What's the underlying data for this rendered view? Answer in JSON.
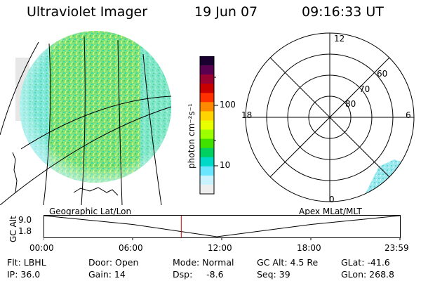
{
  "header": {
    "title": "Ultraviolet Imager",
    "date": "19 Jun 07",
    "time": "09:16:33 UT"
  },
  "colorbar": {
    "label": "photon cm⁻²s⁻¹",
    "ticks": [
      "100",
      "10"
    ],
    "scale": "log",
    "colors": [
      "#1a0030",
      "#5a0050",
      "#9a0030",
      "#c80000",
      "#ff3000",
      "#ff8a00",
      "#ffd400",
      "#e8ff00",
      "#9bff00",
      "#40e000",
      "#00d060",
      "#00d8c8",
      "#6be6ff",
      "#c9f2ff",
      "#eeeeee"
    ]
  },
  "polar": {
    "labels_mlt": [
      "12",
      "18",
      "6",
      "0"
    ],
    "labels_mlat": [
      "60",
      "70",
      "80"
    ]
  },
  "timeline": {
    "left_label": "Geographic Lat/Lon",
    "right_label": "Apex MLat/MLT",
    "axis_label": "GC Alt",
    "y_ticks": [
      "9.0",
      "1.8"
    ],
    "x_ticks": [
      "00:00",
      "06:00",
      "12:00",
      "18:00",
      "23:59"
    ],
    "marker_color": "#cc0000"
  },
  "status": {
    "flt": "Flt: LBHL",
    "ip": "IP: 36.0",
    "door": "Door: Open",
    "gain": "Gain: 14",
    "mode": "Mode: Normal",
    "dsp": "Dsp:     -8.6",
    "gc_alt": "GC Alt: 4.5 Re",
    "seq": "Seq: 39",
    "glat": "GLat: -41.6",
    "glon": "GLon: 268.8"
  },
  "chart_data": {
    "type": "line",
    "title": "",
    "xlabel": "",
    "ylabel": "GC Alt",
    "x": [
      "00:00",
      "06:00",
      "11:40",
      "18:00",
      "23:59"
    ],
    "series": [
      {
        "values": [
          9.0,
          6.0,
          1.8,
          6.0,
          9.0
        ]
      }
    ],
    "ylim": [
      1.8,
      9.0
    ],
    "current_time": "09:16"
  }
}
